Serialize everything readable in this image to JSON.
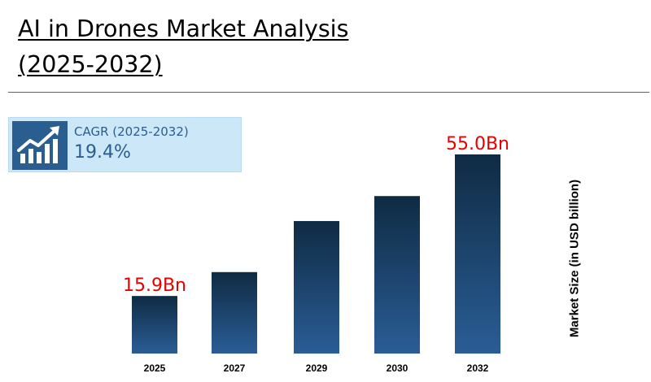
{
  "title_line1": "AI in Drones Market Analysis",
  "title_line2": "(2025-2032)",
  "cagr": {
    "label": "CAGR (2025-2032)",
    "value": "19.4%",
    "icon": "growth-chart-icon"
  },
  "colors": {
    "bar_top": "#0f2b43",
    "bar_bottom": "#2a5d96",
    "label_red": "#e60000",
    "accent": "#2a5d90"
  },
  "chart_data": {
    "type": "bar",
    "categories": [
      "2025",
      "2027",
      "2029",
      "2030",
      "2032"
    ],
    "values": [
      15.9,
      22.5,
      36.6,
      43.5,
      55.0
    ],
    "data_labels": [
      "15.9Bn",
      "",
      "",
      "",
      "55.0Bn"
    ],
    "ylabel": "Market Size (in USD billion)",
    "ylim": [
      0,
      55.0
    ],
    "grid": false,
    "legend": "none"
  }
}
